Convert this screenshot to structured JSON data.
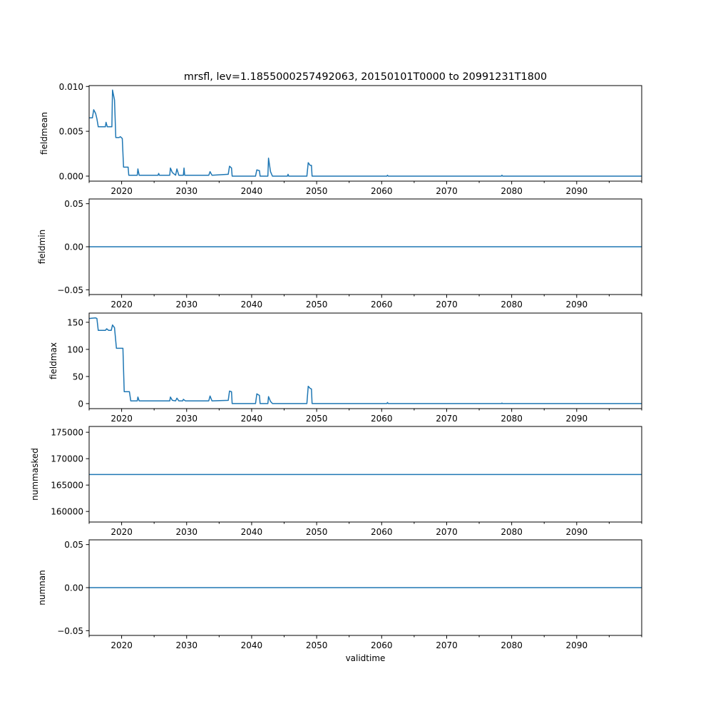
{
  "chart_data": [
    {
      "type": "line",
      "title": "mrsfl, lev=1.1855000257492063, 20150101T0000 to 20991231T1800",
      "ylabel": "fieldmean",
      "xlabel": "",
      "xlim": [
        2015,
        2100
      ],
      "ylim": [
        -0.00056,
        0.0101
      ],
      "yticks": [
        0.0,
        0.005,
        0.01
      ],
      "ytick_labels": [
        "0.000",
        "0.005",
        "0.010"
      ],
      "x": [
        2015,
        2015.5,
        2015.7,
        2016.0,
        2016.2,
        2016.4,
        2017.5,
        2017.6,
        2017.8,
        2018.5,
        2018.6,
        2018.9,
        2019.1,
        2019.6,
        2019.8,
        2020.1,
        2020.3,
        2021.0,
        2021.1,
        2022.4,
        2022.5,
        2022.7,
        2025.6,
        2025.7,
        2025.8,
        2027.4,
        2027.5,
        2027.8,
        2028.3,
        2028.5,
        2028.8,
        2029.5,
        2029.6,
        2029.7,
        2033.4,
        2033.6,
        2033.9,
        2036.4,
        2036.6,
        2036.9,
        2037.0,
        2037.9,
        2038.0,
        2040.6,
        2040.8,
        2041.2,
        2041.3,
        2042.5,
        2042.6,
        2042.9,
        2043.2,
        2045.5,
        2045.6,
        2045.7,
        2048.5,
        2048.7,
        2049.0,
        2049.2,
        2049.3,
        2060.8,
        2060.9,
        2061.0,
        2078.4,
        2078.5,
        2078.6,
        2100
      ],
      "y": [
        0.0065,
        0.0065,
        0.0074,
        0.007,
        0.0064,
        0.0055,
        0.0055,
        0.006,
        0.0055,
        0.0055,
        0.0096,
        0.0085,
        0.0043,
        0.0043,
        0.0044,
        0.0042,
        0.001,
        0.001,
        0.0001,
        0.0001,
        0.0008,
        0.0001,
        0.0001,
        0.0003,
        0.0001,
        0.0001,
        0.0009,
        0.0004,
        0.0001,
        0.0008,
        0.0001,
        0.0001,
        0.0009,
        0.0001,
        0.0001,
        0.0005,
        0.0001,
        0.0002,
        0.0011,
        0.0009,
        0.0,
        0.0,
        0.0,
        0.0,
        0.0007,
        0.0006,
        0.0,
        0.0,
        0.002,
        0.0005,
        0.0,
        0.0,
        0.0002,
        0.0,
        0.0,
        0.0015,
        0.0012,
        0.0012,
        0.0,
        0.0,
        0.0001,
        0.0,
        0.0,
        0.0001,
        0.0,
        0.0
      ]
    },
    {
      "type": "line",
      "ylabel": "fieldmin",
      "xlim": [
        2015,
        2100
      ],
      "ylim": [
        -0.0555,
        0.0555
      ],
      "yticks": [
        -0.05,
        0.0,
        0.05
      ],
      "ytick_labels": [
        "−0.05",
        "0.00",
        "0.05"
      ],
      "x": [
        2015,
        2100
      ],
      "y": [
        0,
        0
      ]
    },
    {
      "type": "line",
      "ylabel": "fieldmax",
      "xlim": [
        2015,
        2100
      ],
      "ylim": [
        -9.3,
        167
      ],
      "yticks": [
        0,
        50,
        100,
        150
      ],
      "ytick_labels": [
        "0",
        "50",
        "100",
        "150"
      ],
      "x": [
        2015,
        2016.0,
        2016.2,
        2016.4,
        2017.5,
        2017.7,
        2018.0,
        2018.4,
        2018.6,
        2018.9,
        2019.2,
        2020.2,
        2020.4,
        2021.2,
        2021.4,
        2022.4,
        2022.5,
        2022.7,
        2027.4,
        2027.5,
        2027.8,
        2028.3,
        2028.5,
        2028.8,
        2029.4,
        2029.5,
        2029.8,
        2033.4,
        2033.6,
        2033.9,
        2036.4,
        2036.6,
        2036.9,
        2037.0,
        2040.6,
        2040.8,
        2041.2,
        2041.3,
        2042.5,
        2042.6,
        2042.9,
        2043.2,
        2048.5,
        2048.7,
        2049.0,
        2049.2,
        2049.3,
        2060.8,
        2060.9,
        2061.0,
        2078.4,
        2078.5,
        2078.6,
        2100
      ],
      "y": [
        157,
        158,
        157,
        135,
        135,
        138,
        135,
        135,
        145,
        140,
        102,
        102,
        22,
        22,
        5,
        5,
        12,
        5,
        5,
        12,
        6,
        5,
        10,
        5,
        5,
        8,
        5,
        5,
        14,
        5,
        6,
        23,
        22,
        0,
        0,
        18,
        15,
        0,
        0,
        13,
        4,
        0,
        0,
        32,
        28,
        27,
        0,
        0,
        2,
        0,
        0,
        1,
        0,
        0
      ]
    },
    {
      "type": "line",
      "ylabel": "nummasked",
      "xlim": [
        2015,
        2100
      ],
      "ylim": [
        158000,
        176100
      ],
      "yticks": [
        160000,
        165000,
        170000,
        175000
      ],
      "ytick_labels": [
        "160000",
        "165000",
        "170000",
        "175000"
      ],
      "x": [
        2015,
        2100
      ],
      "y": [
        167000,
        167000
      ]
    },
    {
      "type": "line",
      "ylabel": "numnan",
      "xlabel": "validtime",
      "xlim": [
        2015,
        2100
      ],
      "ylim": [
        -0.0555,
        0.0555
      ],
      "yticks": [
        -0.05,
        0.0,
        0.05
      ],
      "ytick_labels": [
        "−0.05",
        "0.00",
        "0.05"
      ],
      "x": [
        2015,
        2100
      ],
      "y": [
        0,
        0
      ]
    }
  ],
  "xticks": [
    2020,
    2030,
    2040,
    2050,
    2060,
    2070,
    2080,
    2090
  ],
  "xtick_labels": [
    "2020",
    "2030",
    "2040",
    "2050",
    "2060",
    "2070",
    "2080",
    "2090"
  ],
  "line_color": "#1f77b4"
}
